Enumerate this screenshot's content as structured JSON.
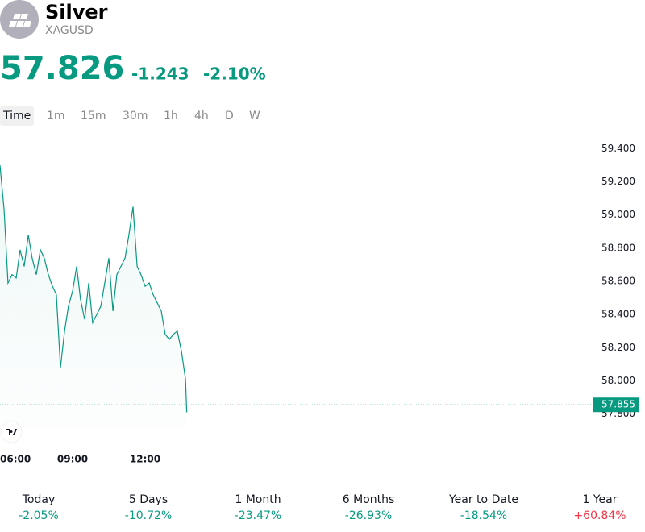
{
  "header": {
    "title": "Silver",
    "symbol": "XAGUSD",
    "price": "57.826",
    "change": "-1.243",
    "change_percent": "-2.10%"
  },
  "timeframes": [
    "Time",
    "1m",
    "15m",
    "30m",
    "1h",
    "4h",
    "D",
    "W"
  ],
  "chart_data": {
    "type": "line",
    "color": "#089981",
    "x": [
      6,
      6.17,
      6.33,
      6.5,
      6.67,
      6.83,
      7,
      7.17,
      7.33,
      7.5,
      7.67,
      7.83,
      8,
      8.17,
      8.33,
      8.5,
      8.67,
      8.83,
      9,
      9.17,
      9.33,
      9.5,
      9.67,
      9.83,
      10,
      10.17,
      10.33,
      10.5,
      10.67,
      10.83,
      11,
      11.17,
      11.33,
      11.5,
      11.67,
      11.83,
      12,
      12.17,
      12.33,
      12.5,
      12.67,
      12.83,
      13,
      13.17,
      13.33,
      13.5,
      13.67,
      13.72
    ],
    "values": [
      59.3,
      59.03,
      58.59,
      58.64,
      58.62,
      58.79,
      58.69,
      58.88,
      58.74,
      58.64,
      58.79,
      58.74,
      58.64,
      58.57,
      58.52,
      58.08,
      58.3,
      58.45,
      58.54,
      58.69,
      58.49,
      58.37,
      58.59,
      58.35,
      58.4,
      58.45,
      58.59,
      58.74,
      58.42,
      58.64,
      58.69,
      58.74,
      58.88,
      59.05,
      58.69,
      58.64,
      58.57,
      58.59,
      58.52,
      58.47,
      58.42,
      58.28,
      58.25,
      58.28,
      58.3,
      58.18,
      58.01,
      57.81
    ],
    "xlim": [
      6,
      30.5
    ],
    "xticks": [
      {
        "value": 6,
        "label": "06:00"
      },
      {
        "value": 9,
        "label": "09:00"
      },
      {
        "value": 12,
        "label": "12:00"
      }
    ],
    "ylim": [
      57.72,
      59.47
    ],
    "yticks": [
      {
        "value": 57.8,
        "label": "57.800"
      },
      {
        "value": 58,
        "label": "58.000"
      },
      {
        "value": 58.2,
        "label": "58.200"
      },
      {
        "value": 58.4,
        "label": "58.400"
      },
      {
        "value": 58.6,
        "label": "58.600"
      },
      {
        "value": 58.8,
        "label": "58.800"
      },
      {
        "value": 59,
        "label": "59.000"
      },
      {
        "value": 59.2,
        "label": "59.200"
      },
      {
        "value": 59.4,
        "label": "59.400"
      }
    ],
    "last_price": {
      "value": 57.855,
      "label": "57.855"
    }
  },
  "performance": [
    {
      "label": "Today",
      "value": "-2.05%"
    },
    {
      "label": "5 Days",
      "value": "-10.72%"
    },
    {
      "label": "1 Month",
      "value": "-23.47%"
    },
    {
      "label": "6 Months",
      "value": "-26.93%"
    },
    {
      "label": "Year to Date",
      "value": "-18.54%"
    },
    {
      "label": "1 Year",
      "value": "+60.84%"
    }
  ]
}
